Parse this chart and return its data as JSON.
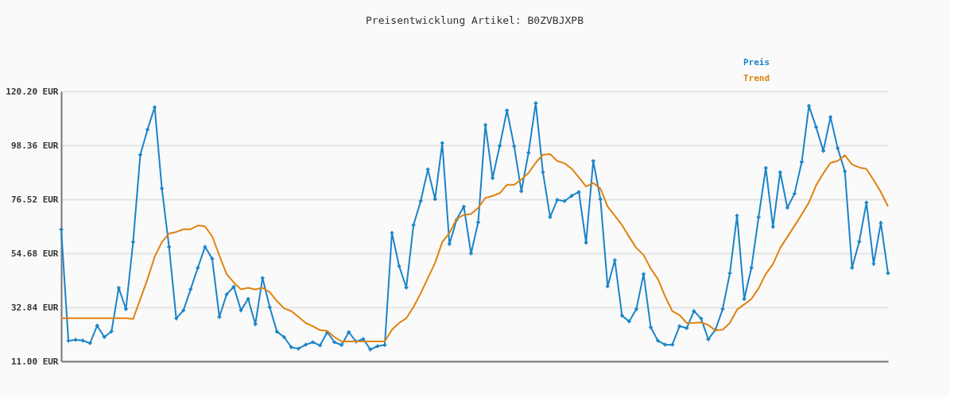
{
  "chart_data": {
    "type": "line",
    "title": "Preisentwicklung Artikel: B0ZVBJXPB",
    "categories": [
      null,
      null,
      null,
      null,
      null,
      null,
      null,
      null,
      null,
      null,
      null,
      null,
      null,
      null,
      null,
      null,
      null,
      null,
      null,
      null,
      null,
      null,
      null,
      null,
      null,
      null,
      null,
      null,
      null,
      null,
      null,
      null,
      null,
      null,
      null,
      null,
      null,
      null,
      null,
      null,
      null,
      null,
      null,
      null,
      null,
      null,
      null,
      null,
      null,
      null,
      null,
      null,
      null,
      null,
      null,
      null,
      null,
      null,
      null,
      null,
      null,
      null,
      null,
      null,
      null,
      null,
      null,
      null,
      null,
      null,
      null,
      null,
      null,
      null,
      null,
      null,
      null,
      null,
      null,
      null,
      null,
      null,
      null,
      null,
      null,
      null,
      null,
      null,
      null,
      null,
      null,
      null,
      null,
      null,
      null,
      null,
      null,
      null,
      null,
      null,
      null,
      null,
      null,
      null,
      null,
      null,
      null,
      null,
      null,
      null,
      null,
      null,
      null,
      null,
      null,
      null
    ],
    "series": [
      {
        "name": "Preis",
        "color": "#1a84c8",
        "marker": "cross",
        "values": [
          64.3,
          19.3,
          19.7,
          19.4,
          18.3,
          25.4,
          20.8,
          23.1,
          40.7,
          32.1,
          59.2,
          94.5,
          104.7,
          113.8,
          80.9,
          57.3,
          28.3,
          31.6,
          40.1,
          48.8,
          57.3,
          52.5,
          28.9,
          38.0,
          41.2,
          31.6,
          36.2,
          26.0,
          44.7,
          32.9,
          23.0,
          20.8,
          16.7,
          16.1,
          17.7,
          18.7,
          17.4,
          22.8,
          18.7,
          17.6,
          22.8,
          19.0,
          20.0,
          15.8,
          17.1,
          17.6,
          62.9,
          49.5,
          40.8,
          66.1,
          75.8,
          88.6,
          76.6,
          99.3,
          58.4,
          68.3,
          73.6,
          54.6,
          67.2,
          106.6,
          85.1,
          98.2,
          112.5,
          98.0,
          79.8,
          95.4,
          115.4,
          87.5,
          69.3,
          76.3,
          75.8,
          77.9,
          79.5,
          59.0,
          92.0,
          76.6,
          41.3,
          51.9,
          29.5,
          27.1,
          32.1,
          46.3,
          24.7,
          19.3,
          17.7,
          17.7,
          25.2,
          24.4,
          31.3,
          28.3,
          19.9,
          23.8,
          32.1,
          46.6,
          69.9,
          36.2,
          48.8,
          69.3,
          89.2,
          65.4,
          87.5,
          73.1,
          78.8,
          91.6,
          114.3,
          105.7,
          96.1,
          109.8,
          97.2,
          87.8,
          48.8,
          59.4,
          75.2,
          50.4,
          67.0,
          46.6
        ]
      },
      {
        "name": "Trend",
        "color": "#e0820e",
        "marker": "none",
        "values": [
          28.4,
          28.4,
          28.4,
          28.4,
          28.4,
          28.4,
          28.4,
          28.4,
          28.4,
          28.4,
          28.1,
          36.2,
          44.2,
          53.3,
          59.2,
          62.7,
          63.3,
          64.4,
          64.4,
          65.9,
          65.6,
          61.5,
          53.8,
          46.3,
          42.9,
          40.1,
          40.7,
          40.1,
          40.7,
          39.0,
          35.4,
          32.4,
          31.3,
          29.0,
          26.5,
          25.2,
          23.6,
          23.3,
          20.8,
          19.0,
          19.0,
          19.0,
          19.0,
          19.0,
          19.0,
          19.0,
          23.8,
          26.5,
          28.4,
          32.9,
          38.5,
          44.7,
          50.8,
          59.2,
          62.9,
          68.6,
          70.2,
          70.6,
          73.1,
          77.1,
          77.9,
          79.0,
          82.4,
          82.4,
          84.5,
          87.2,
          91.3,
          94.5,
          94.8,
          92.0,
          91.1,
          88.9,
          85.4,
          81.7,
          83.1,
          80.9,
          73.6,
          69.9,
          66.1,
          61.3,
          56.8,
          54.0,
          48.5,
          44.2,
          37.2,
          31.3,
          29.7,
          26.5,
          26.5,
          26.7,
          25.7,
          23.5,
          23.8,
          26.5,
          31.9,
          34.0,
          36.2,
          40.5,
          46.3,
          50.3,
          56.8,
          61.3,
          65.8,
          70.4,
          75.2,
          82.2,
          87.0,
          91.3,
          92.0,
          94.3,
          90.6,
          89.4,
          88.8,
          84.3,
          79.5,
          73.6
        ]
      }
    ],
    "ylim": [
      11.0,
      120.2
    ],
    "yticks": [
      {
        "value": 11.0,
        "label": "11.00 EUR"
      },
      {
        "value": 32.84,
        "label": "32.84 EUR"
      },
      {
        "value": 54.68,
        "label": "54.68 EUR"
      },
      {
        "value": 76.52,
        "label": "76.52 EUR"
      },
      {
        "value": 98.36,
        "label": "98.36 EUR"
      },
      {
        "value": 120.2,
        "label": "120.20 EUR"
      }
    ],
    "grid": "y",
    "legend": "top right",
    "tick_labels": "y",
    "line_style": "solid"
  }
}
